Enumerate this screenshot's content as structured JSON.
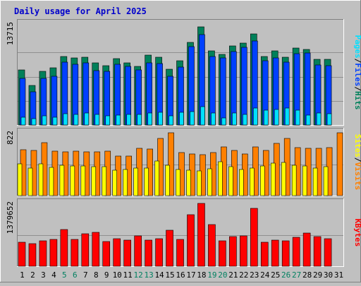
{
  "chart_data": {
    "type": "bar",
    "title": "Daily usage for April 2025",
    "categories": [
      "1",
      "2",
      "3",
      "4",
      "5",
      "6",
      "7",
      "8",
      "9",
      "10",
      "11",
      "12",
      "13",
      "14",
      "15",
      "16",
      "17",
      "18",
      "19",
      "20",
      "21",
      "22",
      "23",
      "24",
      "25",
      "26",
      "27",
      "28",
      "29",
      "30",
      "31"
    ],
    "weekend_days": [
      "5",
      "6",
      "12",
      "13",
      "19",
      "20",
      "26",
      "27"
    ],
    "panels": [
      {
        "id": "hits",
        "ymax_label": "13715",
        "ylim": [
          0,
          13715
        ],
        "right_labels": [
          "Pages",
          "Files",
          "Hits"
        ],
        "series": [
          {
            "name": "Hits",
            "color": "#00805a",
            "values": [
              7700,
              5500,
              7500,
              8000,
              9600,
              9400,
              9500,
              8700,
              8300,
              9300,
              8700,
              8200,
              9800,
              9500,
              7800,
              9000,
              11600,
              13715,
              10400,
              9900,
              11100,
              11500,
              12700,
              9600,
              10400,
              9500,
              10800,
              10600,
              9200,
              9200,
              null
            ]
          },
          {
            "name": "Files",
            "color": "#0040ff",
            "values": [
              6500,
              4600,
              6500,
              6800,
              8800,
              8500,
              8700,
              7600,
              7500,
              8500,
              8200,
              7700,
              8700,
              8600,
              6800,
              8100,
              11000,
              12600,
              9600,
              9400,
              10300,
              10900,
              11700,
              9000,
              9400,
              8800,
              10000,
              10100,
              8400,
              8300,
              null
            ]
          },
          {
            "name": "Pages",
            "color": "#00e0ff",
            "values": [
              1100,
              900,
              1300,
              1100,
              1600,
              1500,
              1700,
              1500,
              1300,
              1400,
              1500,
              1500,
              1700,
              1800,
              1300,
              1800,
              1900,
              2600,
              1700,
              1000,
              1700,
              1500,
              2400,
              2100,
              2200,
              2400,
              2100,
              1400,
              1700,
              1600,
              null
            ]
          }
        ]
      },
      {
        "id": "visits",
        "ymax_label": "822",
        "ylim": [
          0,
          822
        ],
        "right_labels": [
          "Sites",
          "/",
          "Visits"
        ],
        "series": [
          {
            "name": "Visits",
            "color": "#ff8000",
            "values": [
              600,
              590,
              690,
              580,
              570,
              580,
              570,
              570,
              580,
              520,
              520,
              620,
              610,
              750,
              820,
              560,
              540,
              530,
              560,
              640,
              590,
              540,
              640,
              590,
              680,
              750,
              630,
              620,
              620,
              630,
              820
            ]
          },
          {
            "name": "Sites",
            "color": "#ffff00",
            "values": [
              410,
              360,
              410,
              370,
              400,
              390,
              390,
              380,
              380,
              330,
              340,
              360,
              360,
              450,
              400,
              340,
              330,
              320,
              350,
              440,
              380,
              340,
              360,
              390,
              420,
              430,
              400,
              390,
              360,
              380,
              null
            ]
          }
        ]
      },
      {
        "id": "kbytes",
        "ymax_label": "1379652",
        "ylim": [
          0,
          1379652
        ],
        "right_labels": [
          "KBytes"
        ],
        "series": [
          {
            "name": "KBytes",
            "color": "#ff0000",
            "values": [
              520000,
              490000,
              560000,
              580000,
              800000,
              580000,
              710000,
              740000,
              540000,
              610000,
              570000,
              660000,
              570000,
              600000,
              790000,
              580000,
              1130000,
              1379652,
              910000,
              550000,
              650000,
              670000,
              1260000,
              520000,
              570000,
              560000,
              630000,
              730000,
              650000,
              600000,
              null
            ]
          }
        ]
      }
    ]
  }
}
